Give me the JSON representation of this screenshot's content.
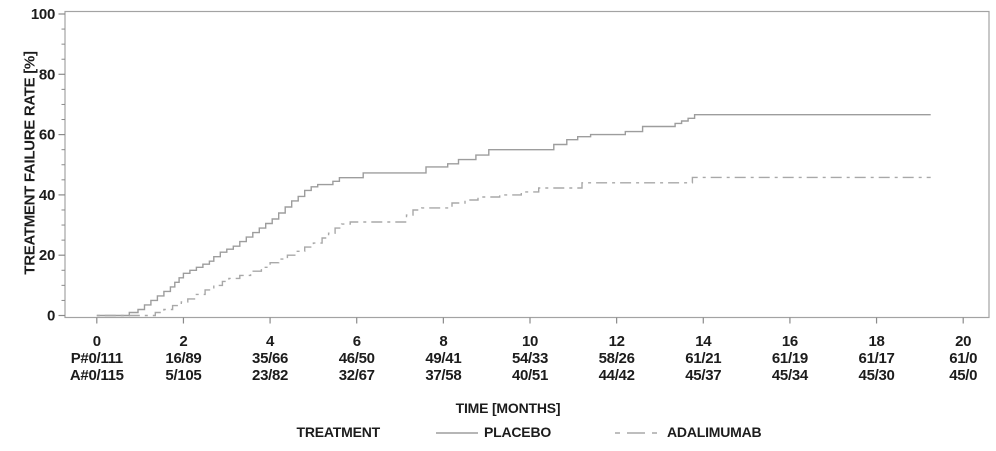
{
  "chart_data": {
    "type": "line",
    "subtype": "kaplan-meier-step",
    "title": "",
    "xlabel": "TIME [MONTHS]",
    "ylabel": "TREATMENT FAILURE RATE [%]",
    "xlim": [
      0,
      20
    ],
    "ylim": [
      0,
      100
    ],
    "x_ticks": [
      0,
      2,
      4,
      6,
      8,
      10,
      12,
      14,
      16,
      18,
      20
    ],
    "y_ticks": [
      0,
      20,
      40,
      60,
      80,
      100
    ],
    "y_minor_tick_step": 5,
    "grid": false,
    "legend_title": "TREATMENT",
    "legend_position": "bottom",
    "frame_color": "#a3a3a3",
    "tick_color": "#8a8a8a",
    "text_color": "#1c1c1c",
    "series": [
      {
        "name": "PLACEBO",
        "style": "solid",
        "color": "#9d9d9d",
        "end_month": 19.25,
        "points": [
          [
            0,
            0
          ],
          [
            0.75,
            1
          ],
          [
            0.95,
            2
          ],
          [
            1.1,
            3.5
          ],
          [
            1.25,
            5
          ],
          [
            1.4,
            6.5
          ],
          [
            1.55,
            8
          ],
          [
            1.7,
            9.5
          ],
          [
            1.8,
            11
          ],
          [
            1.9,
            12.5
          ],
          [
            2.0,
            14
          ],
          [
            2.15,
            15
          ],
          [
            2.3,
            16
          ],
          [
            2.45,
            17
          ],
          [
            2.6,
            18
          ],
          [
            2.7,
            19.5
          ],
          [
            2.85,
            21
          ],
          [
            3.0,
            22
          ],
          [
            3.15,
            23
          ],
          [
            3.3,
            24.5
          ],
          [
            3.45,
            26
          ],
          [
            3.6,
            27.5
          ],
          [
            3.75,
            29
          ],
          [
            3.9,
            30.5
          ],
          [
            4.05,
            32
          ],
          [
            4.2,
            34
          ],
          [
            4.35,
            36
          ],
          [
            4.5,
            38
          ],
          [
            4.65,
            39.5
          ],
          [
            4.8,
            41.5
          ],
          [
            4.95,
            42.7
          ],
          [
            5.1,
            43.4
          ],
          [
            5.45,
            44.5
          ],
          [
            5.6,
            45.7
          ],
          [
            6.15,
            47.3
          ],
          [
            7.6,
            49.3
          ],
          [
            8.1,
            50.3
          ],
          [
            8.35,
            51.7
          ],
          [
            8.75,
            53.2
          ],
          [
            9.05,
            55
          ],
          [
            10.55,
            56.7
          ],
          [
            10.85,
            58.3
          ],
          [
            11.1,
            59.3
          ],
          [
            11.4,
            60
          ],
          [
            12.2,
            61
          ],
          [
            12.6,
            62.7
          ],
          [
            13.35,
            63.7
          ],
          [
            13.5,
            64.5
          ],
          [
            13.65,
            65.4
          ],
          [
            13.8,
            66.6
          ]
        ]
      },
      {
        "name": "ADALIMUMAB",
        "style": "dashed",
        "color": "#a8a8a8",
        "end_month": 19.25,
        "points": [
          [
            0,
            0
          ],
          [
            1.35,
            1
          ],
          [
            1.55,
            2
          ],
          [
            1.75,
            3.3
          ],
          [
            1.95,
            4.5
          ],
          [
            2.1,
            5.5
          ],
          [
            2.3,
            7
          ],
          [
            2.5,
            8.5
          ],
          [
            2.7,
            10
          ],
          [
            2.9,
            11.3
          ],
          [
            3.05,
            12.3
          ],
          [
            3.3,
            13.3
          ],
          [
            3.55,
            14.7
          ],
          [
            3.8,
            16
          ],
          [
            4.0,
            17.5
          ],
          [
            4.2,
            18.7
          ],
          [
            4.4,
            20
          ],
          [
            4.6,
            21.3
          ],
          [
            4.8,
            22.7
          ],
          [
            5.0,
            24
          ],
          [
            5.2,
            25.7
          ],
          [
            5.35,
            27.3
          ],
          [
            5.5,
            29
          ],
          [
            5.65,
            30.3
          ],
          [
            5.85,
            31
          ],
          [
            7.15,
            33.3
          ],
          [
            7.3,
            35
          ],
          [
            7.5,
            35.7
          ],
          [
            8.2,
            37.3
          ],
          [
            8.5,
            38.3
          ],
          [
            8.8,
            39.3
          ],
          [
            9.3,
            40
          ],
          [
            9.8,
            41
          ],
          [
            10.2,
            42.3
          ],
          [
            11.2,
            44
          ],
          [
            13.75,
            45.8
          ]
        ]
      }
    ],
    "risk_table": {
      "rows": [
        {
          "name": "placebo-at-risk",
          "cells": [
            "P#0/111",
            "16/89",
            "35/66",
            "46/50",
            "49/41",
            "54/33",
            "58/26",
            "61/21",
            "61/19",
            "61/17",
            "61/0"
          ]
        },
        {
          "name": "adalimumab-at-risk",
          "cells": [
            "A#0/115",
            "5/105",
            "23/82",
            "32/67",
            "37/58",
            "40/51",
            "44/42",
            "45/37",
            "45/34",
            "45/30",
            "45/0"
          ]
        }
      ]
    }
  }
}
